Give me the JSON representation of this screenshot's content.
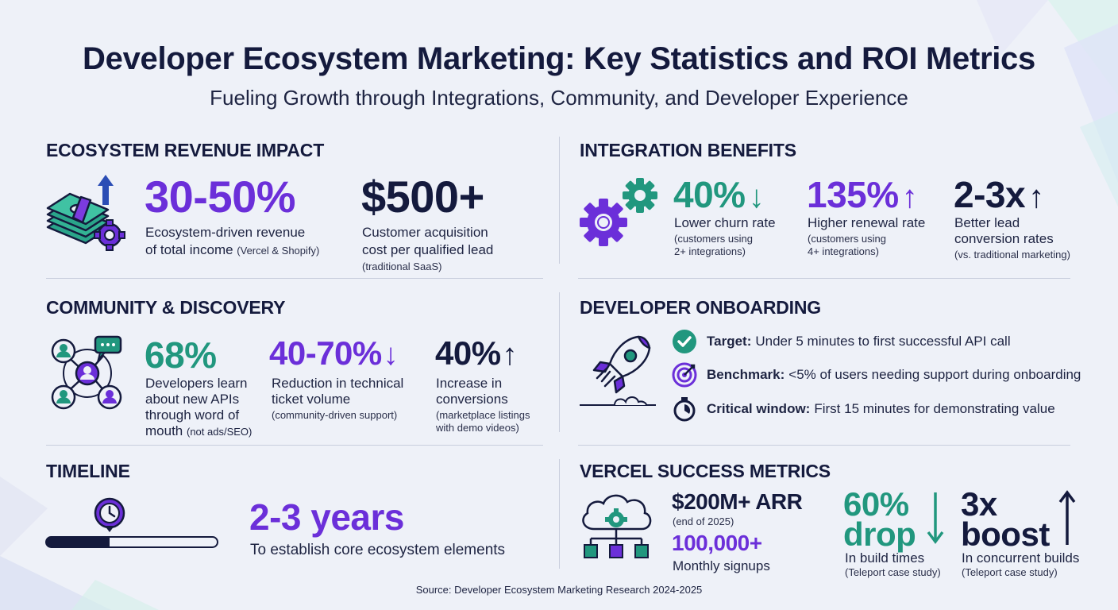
{
  "title": "Developer Ecosystem Marketing: Key Statistics and ROI Metrics",
  "subtitle": "Fueling Growth through Integrations, Community, and Developer Experience",
  "revenue": {
    "heading": "ECOSYSTEM REVENUE IMPACT",
    "stat1": {
      "value": "30-50%",
      "label_line1": "Ecosystem-driven revenue",
      "label_line2": "of total income",
      "note": "(Vercel & Shopify)"
    },
    "stat2": {
      "value": "$500+",
      "label_line1": "Customer acquisition",
      "label_line2": "cost per qualified lead",
      "note": "(traditional SaaS)"
    }
  },
  "integration": {
    "heading": "INTEGRATION BENEFITS",
    "stats": [
      {
        "value": "40%",
        "label": "Lower churn rate",
        "note1": "(customers using",
        "note2": "2+ integrations)"
      },
      {
        "value": "135%",
        "label": "Higher renewal rate",
        "note1": "(customers using",
        "note2": "4+ integrations)"
      },
      {
        "value": "2-3x",
        "label1": "Better lead",
        "label2": "conversion rates",
        "note1": "(vs. traditional marketing)"
      }
    ]
  },
  "community": {
    "heading": "COMMUNITY & DISCOVERY",
    "stat1": {
      "value": "68%",
      "l1": "Developers learn",
      "l2": "about new APIs",
      "l3": "through word of",
      "l4": "mouth",
      "note": "(not ads/SEO)"
    },
    "stat2": {
      "value": "40-70%",
      "l1": "Reduction in technical",
      "l2": "ticket volume",
      "note": "(community-driven support)"
    },
    "stat3": {
      "value": "40%",
      "l1": "Increase in",
      "l2": "conversions",
      "note1": "(marketplace listings",
      "note2": "with demo videos)"
    }
  },
  "onboarding": {
    "heading": "DEVELOPER ONBOARDING",
    "items": [
      {
        "label": "Target:",
        "text": "Under 5 minutes to first successful API call"
      },
      {
        "label": "Benchmark:",
        "text": "<5% of users needing support during onboarding"
      },
      {
        "label": "Critical window:",
        "text": "First 15 minutes for demonstrating value"
      }
    ]
  },
  "timeline": {
    "heading": "TIMELINE",
    "value": "2-3 years",
    "label": "To establish core ecosystem elements"
  },
  "vercel": {
    "heading": "VERCEL SUCCESS METRICS",
    "arr": "$200M+ ARR",
    "arr_note": "(end of 2025)",
    "signups": "100,000+",
    "signups_label": "Monthly signups",
    "drop_value1": "60%",
    "drop_value2": "drop",
    "drop_label": "In build times",
    "drop_note": "(Teleport case study)",
    "boost_value1": "3x",
    "boost_value2": "boost",
    "boost_label": "In concurrent builds",
    "boost_note": "(Teleport case study)"
  },
  "source": "Source: Developer Ecosystem Marketing Research 2024-2025",
  "colors": {
    "purple": "#6b2fd9",
    "teal": "#21977e",
    "navy": "#141a3d",
    "background": "#eef1f8"
  }
}
